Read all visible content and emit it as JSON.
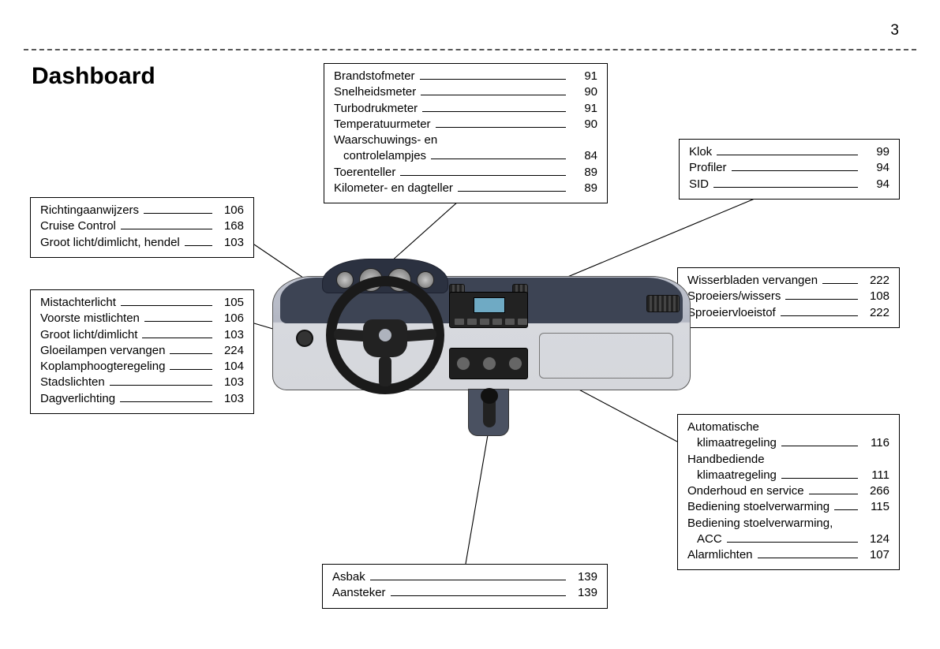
{
  "page_number": "3",
  "title": "Dashboard",
  "colors": {
    "text": "#000000",
    "bg": "#ffffff",
    "dash_dark": "#3d4454",
    "dash_light": "#d5d7dc",
    "accent": "#bfc3ce"
  },
  "boxes": {
    "top_center": {
      "items": [
        {
          "label": "Brandstofmeter",
          "page": "91"
        },
        {
          "label": "Snelheidsmeter",
          "page": "90"
        },
        {
          "label": "Turbodrukmeter",
          "page": "91"
        },
        {
          "label": "Temperatuurmeter",
          "page": "90"
        },
        {
          "label": "Waarschuwings- en",
          "page": ""
        },
        {
          "label": "controlelampjes",
          "page": "84",
          "continued": true
        },
        {
          "label": "Toerenteller",
          "page": "89"
        },
        {
          "label": "Kilometer- en dagteller",
          "page": "89"
        }
      ]
    },
    "top_right": {
      "items": [
        {
          "label": "Klok",
          "page": "99"
        },
        {
          "label": "Profiler",
          "page": "94"
        },
        {
          "label": "SID",
          "page": "94"
        }
      ]
    },
    "mid_right": {
      "items": [
        {
          "label": "Wisserbladen vervangen",
          "page": "222"
        },
        {
          "label": "Sproeiers/wissers",
          "page": "108"
        },
        {
          "label": "Sproeiervloeistof",
          "page": "222"
        }
      ]
    },
    "bottom_right": {
      "items": [
        {
          "label": "Automatische",
          "page": ""
        },
        {
          "label": "klimaatregeling",
          "page": "116",
          "continued": true
        },
        {
          "label": "Handbediende",
          "page": ""
        },
        {
          "label": "klimaatregeling",
          "page": "111",
          "continued": true
        },
        {
          "label": "Onderhoud en service",
          "page": "266"
        },
        {
          "label": "Bediening stoelverwarming",
          "page": "115"
        },
        {
          "label": "Bediening stoelverwarming,",
          "page": ""
        },
        {
          "label": "ACC",
          "page": "124",
          "continued": true
        },
        {
          "label": "Alarmlichten",
          "page": "107"
        }
      ]
    },
    "bottom_center": {
      "items": [
        {
          "label": "Asbak",
          "page": "139"
        },
        {
          "label": "Aansteker",
          "page": "139"
        }
      ]
    },
    "upper_left": {
      "items": [
        {
          "label": "Richtingaanwijzers",
          "page": "106"
        },
        {
          "label": "Cruise Control",
          "page": "168"
        },
        {
          "label": "Groot licht/dimlicht, hendel",
          "page": "103"
        }
      ]
    },
    "lower_left": {
      "items": [
        {
          "label": "Mistachterlicht",
          "page": "105"
        },
        {
          "label": "Voorste mistlichten",
          "page": "106"
        },
        {
          "label": "Groot licht/dimlicht",
          "page": "103"
        },
        {
          "label": "Gloeilampen vervangen",
          "page": "224"
        },
        {
          "label": "Koplamphoogteregeling",
          "page": "104"
        },
        {
          "label": "Stadslichten",
          "page": "103"
        },
        {
          "label": "Dagverlichting",
          "page": "103"
        }
      ]
    }
  }
}
